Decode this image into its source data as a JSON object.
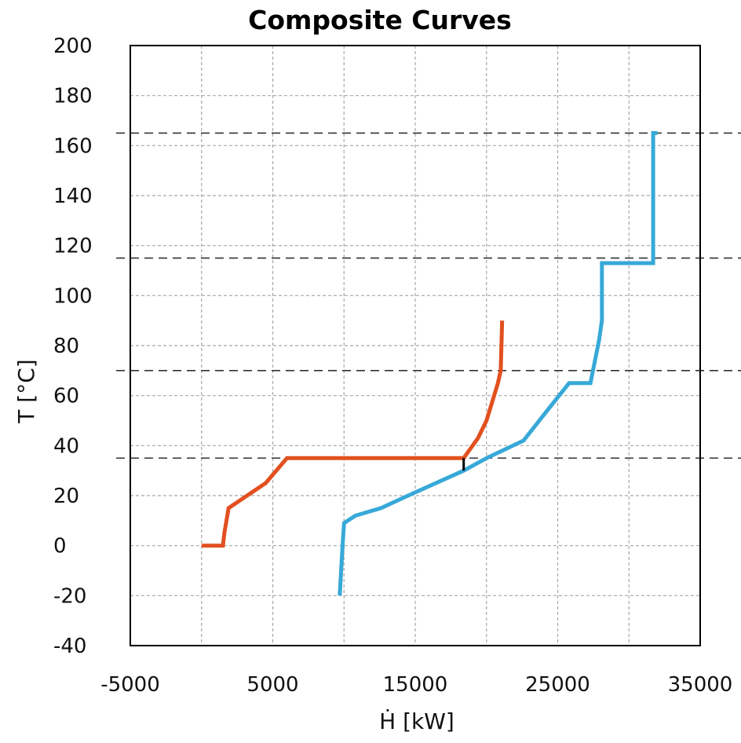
{
  "chart_data": {
    "type": "line",
    "title": "Composite Curves",
    "xlabel": "Ḣ [kW]",
    "ylabel": "T [°C]",
    "xlim": [
      -5000,
      35000
    ],
    "ylim": [
      -40,
      200
    ],
    "xticks": [
      -5000,
      5000,
      15000,
      25000,
      35000
    ],
    "yticks": [
      200,
      180,
      160,
      140,
      120,
      100,
      80,
      60,
      40,
      20,
      0,
      -20,
      -40
    ],
    "xgrid": [
      0,
      5000,
      10000,
      15000,
      20000,
      25000,
      30000
    ],
    "grid": true,
    "legend": "none",
    "reference_lines_y": [
      165,
      115,
      70,
      35
    ],
    "pinch_marker": {
      "x": 18400,
      "y_from": 35,
      "y_to": 30
    },
    "series": [
      {
        "color": "#e2501f",
        "points": [
          [
            0,
            0
          ],
          [
            1500,
            0
          ],
          [
            1600,
            5
          ],
          [
            1900,
            15
          ],
          [
            4500,
            25
          ],
          [
            6000,
            35
          ],
          [
            18400,
            35
          ],
          [
            19400,
            43
          ],
          [
            20000,
            50
          ],
          [
            20800,
            65
          ],
          [
            21000,
            70
          ],
          [
            21100,
            90
          ]
        ]
      },
      {
        "color": "#37a9d8",
        "points": [
          [
            9700,
            -20
          ],
          [
            9900,
            0
          ],
          [
            10000,
            9
          ],
          [
            10800,
            12
          ],
          [
            12600,
            15
          ],
          [
            14500,
            20
          ],
          [
            18400,
            30
          ],
          [
            20000,
            35
          ],
          [
            22600,
            42
          ],
          [
            24400,
            55
          ],
          [
            25800,
            65
          ],
          [
            27300,
            65
          ],
          [
            27900,
            82
          ],
          [
            28100,
            90
          ],
          [
            28100,
            113
          ],
          [
            31700,
            113
          ],
          [
            31700,
            165
          ],
          [
            32000,
            165
          ]
        ]
      }
    ]
  }
}
